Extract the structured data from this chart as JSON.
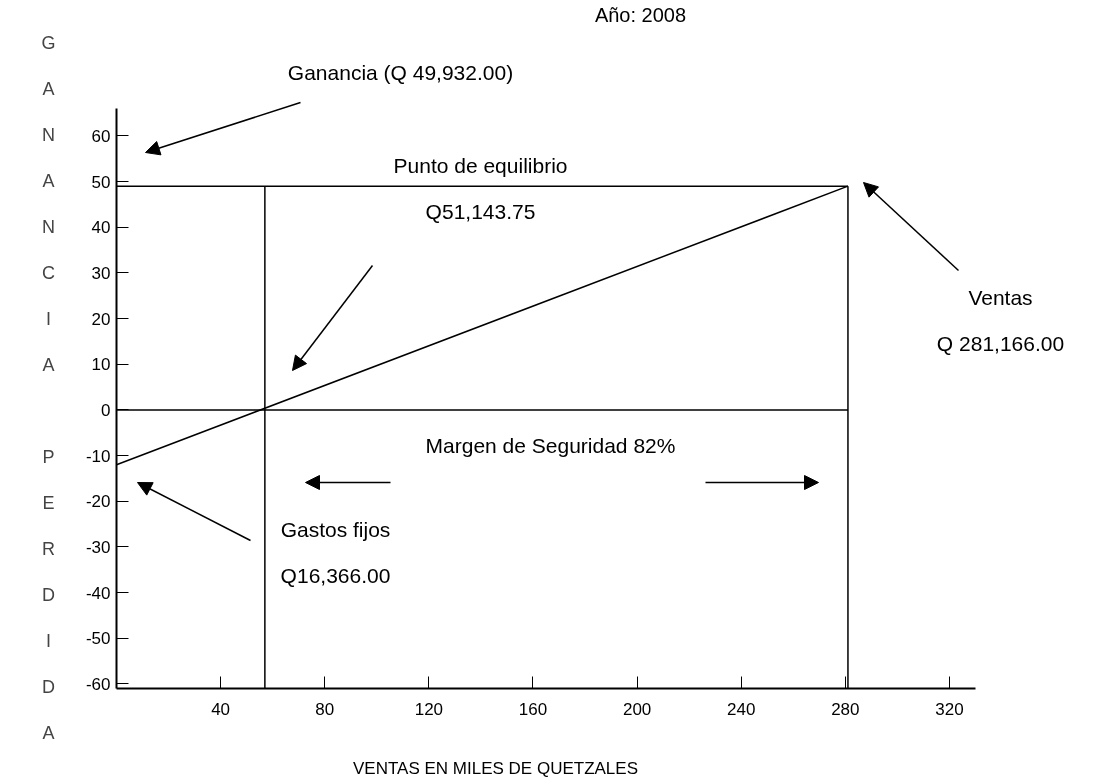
{
  "chart_data": {
    "type": "line",
    "title": "Año: 2008",
    "xlabel": "VENTAS EN MILES DE QUETZALES",
    "ylabel": "G\nA\nN\nA\nN\nC\nI\nA\n\nP\nE\nR\nD\nI\nD\nA",
    "xlim": [
      0,
      330
    ],
    "ylim": [
      -61,
      66
    ],
    "xticks": [
      40,
      80,
      120,
      160,
      200,
      240,
      280,
      320
    ],
    "yticks": [
      -60,
      -50,
      -40,
      -30,
      -20,
      -10,
      0,
      10,
      20,
      30,
      40,
      50,
      60
    ],
    "grid": false,
    "series": [
      {
        "color": "#000000",
        "x": [
          0,
          281
        ],
        "values": [
          -12,
          49
        ]
      },
      {
        "color": "#000000",
        "x": [
          0,
          281
        ],
        "values": [
          49,
          49
        ]
      },
      {
        "color": "#000000",
        "x": [
          0,
          281
        ],
        "values": [
          0,
          0
        ]
      },
      {
        "color": "#000000",
        "x": [
          57,
          57
        ],
        "values": [
          -61,
          49
        ]
      },
      {
        "color": "#000000",
        "x": [
          281,
          281
        ],
        "values": [
          -61,
          49
        ]
      }
    ],
    "annotations": [
      "Ganancia (Q 49,932.00)",
      "Punto de equilibrio\nQ51,143.75",
      "Ventas\nQ 281,166.00",
      "Gastos fijos\nQ16,366.00",
      "Margen de Seguridad 82%"
    ]
  }
}
